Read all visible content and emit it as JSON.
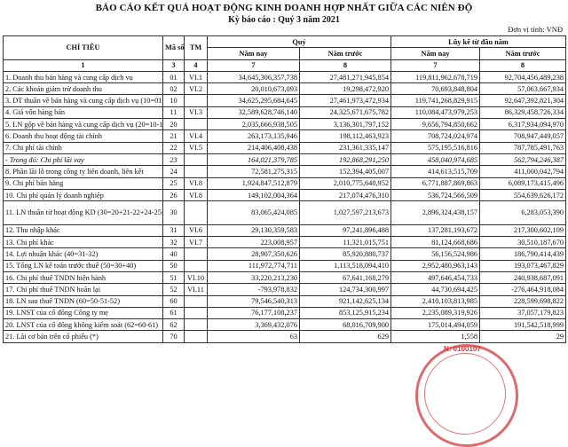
{
  "header": {
    "title": "BÁO CÁO KẾT QUẢ HOẠT ĐỘNG KINH DOANH HỢP NHẤT GIỮA CÁC NIÊN ĐỘ",
    "subtitle": "Kỳ báo cáo : Quý 3 năm 2021",
    "unit": "Đơn vị tính: VNĐ"
  },
  "table": {
    "headers": {
      "chi_tieu": "CHỈ TIÊU",
      "ma_so": "Mã số",
      "tm": "TM",
      "quy": "Quý",
      "luy_ke": "Lũy kế từ đầu năm",
      "nam_nay": "Năm nay",
      "nam_truoc": "Năm trước",
      "nam_nay_2": "Năm nay",
      "nam_truoc_2": "Năm trước"
    },
    "column_numbers": [
      "1",
      "3",
      "4",
      "7",
      "8",
      "7",
      "8"
    ],
    "rows": [
      {
        "label": "1. Doanh thu bán hàng và cung cấp dịch vụ",
        "code": "01",
        "note": "VI.1",
        "q_this": "34,645,306,357,738",
        "q_prev": "27,481,271,945,854",
        "y_this": "119,811,962,678,719",
        "y_prev": "92,704,456,489,238"
      },
      {
        "label": "2. Các khoản giảm trừ doanh thu",
        "code": "02",
        "note": "VI.2",
        "q_this": "20,010,673,093",
        "q_prev": "19,298,472,920",
        "y_this": "70,693,848,804",
        "y_prev": "57,063,667,934"
      },
      {
        "label": "3. DT thuần về bán hàng và cung cấp dịch vụ (10=01-02)",
        "code": "10",
        "note": "",
        "q_this": "34,625,295,684,645",
        "q_prev": "27,461,973,472,934",
        "y_this": "119,741,268,829,915",
        "y_prev": "92,647,392,821,304"
      },
      {
        "label": "4. Giá vốn hàng bán",
        "code": "11",
        "note": "VI.3",
        "q_this": "32,589,628,746,140",
        "q_prev": "24,325,671,675,782",
        "y_this": "110,084,473,979,253",
        "y_prev": "86,329,458,726,334"
      },
      {
        "label": "5. LN gộp về bán hàng và cung cấp dịch vụ (20=10-11)",
        "code": "20",
        "note": "",
        "q_this": "2,035,666,938,505",
        "q_prev": "3,136,301,797,152",
        "y_this": "9,656,794,850,662",
        "y_prev": "6,317,934,094,970"
      },
      {
        "label": "6. Doanh thu hoạt động tài chính",
        "code": "21",
        "note": "VI.4",
        "q_this": "263,173,135,946",
        "q_prev": "198,112,463,923",
        "y_this": "708,724,024,974",
        "y_prev": "708,947,449,057"
      },
      {
        "label": "7. Chi phí tài chính",
        "code": "22",
        "note": "VI.5",
        "q_this": "214,406,408,438",
        "q_prev": "231,361,335,147",
        "y_this": "575,195,516,816",
        "y_prev": "787,785,491,763"
      },
      {
        "label": "- Trong đó: Chi phí lãi vay",
        "code": "23",
        "note": "",
        "q_this": "164,021,379,785",
        "q_prev": "192,868,291,250",
        "y_this": "458,040,974,685",
        "y_prev": "562,794,246,387",
        "italic": true
      },
      {
        "label": "8. Phần lãi lỗ trong công ty liên doanh, liên kết",
        "code": "24",
        "note": "",
        "q_this": "72,581,275,315",
        "q_prev": "152,394,405,007",
        "y_this": "414,613,515,709",
        "y_prev": "411,000,042,794"
      },
      {
        "label": "9. Chi phí bán hàng",
        "code": "25",
        "note": "VI.8",
        "q_this": "1,924,847,512,879",
        "q_prev": "2,010,775,640,952",
        "y_this": "6,771,887,869,863",
        "y_prev": "6,089,173,415,496"
      },
      {
        "label": "10. Chi phí quản lý doanh nghiệp",
        "code": "26",
        "note": "VI.8",
        "q_this": "149,102,004,364",
        "q_prev": "217,074,476,310",
        "y_this": "536,724,566,509",
        "y_prev": "554,639,626,172"
      },
      {
        "label": "11. LN thuần từ hoạt động KD (30=20+21-22+24-25-26)",
        "code": "30",
        "note": "",
        "q_this": "83,065,424,085",
        "q_prev": "1,027,597,213,673",
        "y_this": "2,896,324,438,157",
        "y_prev": "6,283,053,390",
        "tall": true
      },
      {
        "label": "12. Thu nhập khác",
        "code": "31",
        "note": "VI.6",
        "q_this": "29,130,359,583",
        "q_prev": "97,241,896,488",
        "y_this": "137,281,193,672",
        "y_prev": "217,300,602,109"
      },
      {
        "label": "13. Chi phí khác",
        "code": "32",
        "note": "VI.7",
        "q_this": "223,008,957",
        "q_prev": "11,321,015,751",
        "y_this": "81,124,668,686",
        "y_prev": "30,510,187,670"
      },
      {
        "label": "14. Lợi nhuận khác (40=31-32)",
        "code": "40",
        "note": "",
        "q_this": "28,907,350,626",
        "q_prev": "85,920,880,737",
        "y_this": "56,156,524,986",
        "y_prev": "186,790,414,439"
      },
      {
        "label": "15. Tổng LN kế toán trước thuế (50=30+40)",
        "code": "50",
        "note": "",
        "q_this": "111,972,774,711",
        "q_prev": "1,113,518,094,410",
        "y_this": "2,952,480,963,143",
        "y_prev": "193,073,467,829"
      },
      {
        "label": "16. Chi phí thuế TNDN hiện hành",
        "code": "51",
        "note": "VI.10",
        "q_this": "33,220,213,230",
        "q_prev": "67,641,168,279",
        "y_this": "497,646,454,733",
        "y_prev": "240,938,687,091"
      },
      {
        "label": "17. Chi phí thuế TNDN hoãn lại",
        "code": "52",
        "note": "VI.11",
        "q_this": "-793,978,832",
        "q_prev": "124,734,300,997",
        "y_this": "44,730,694,425",
        "y_prev": "-276,464,918,084"
      },
      {
        "label": "18. LN sau thuế TNDN (60=50-51-52)",
        "code": "60",
        "note": "",
        "q_this": "79,546,540,313",
        "q_prev": "921,142,625,134",
        "y_this": "2,410,103,813,985",
        "y_prev": "228,599,698,822"
      },
      {
        "label": "19. LNST của cổ đông Công ty mẹ",
        "code": "61",
        "note": "",
        "q_this": "76,177,108,237",
        "q_prev": "853,125,915,234",
        "y_this": "2,235,089,319,926",
        "y_prev": "37,057,179,823"
      },
      {
        "label": "20. LNST của cổ đông không kiểm soát (62=60-61)",
        "code": "62",
        "note": "",
        "q_this": "3,369,432,076",
        "q_prev": "68,016,709,900",
        "y_this": "175,014,494,059",
        "y_prev": "191,542,518,999"
      },
      {
        "label": "21. Lãi cơ bản trên cổ phiếu (*)",
        "code": "70",
        "note": "",
        "q_this": "63",
        "q_prev": "629",
        "y_this": "1,558",
        "y_prev": "29"
      }
    ]
  },
  "stamp": {
    "text": "N: 0100107",
    "color": "#d23a3a"
  }
}
